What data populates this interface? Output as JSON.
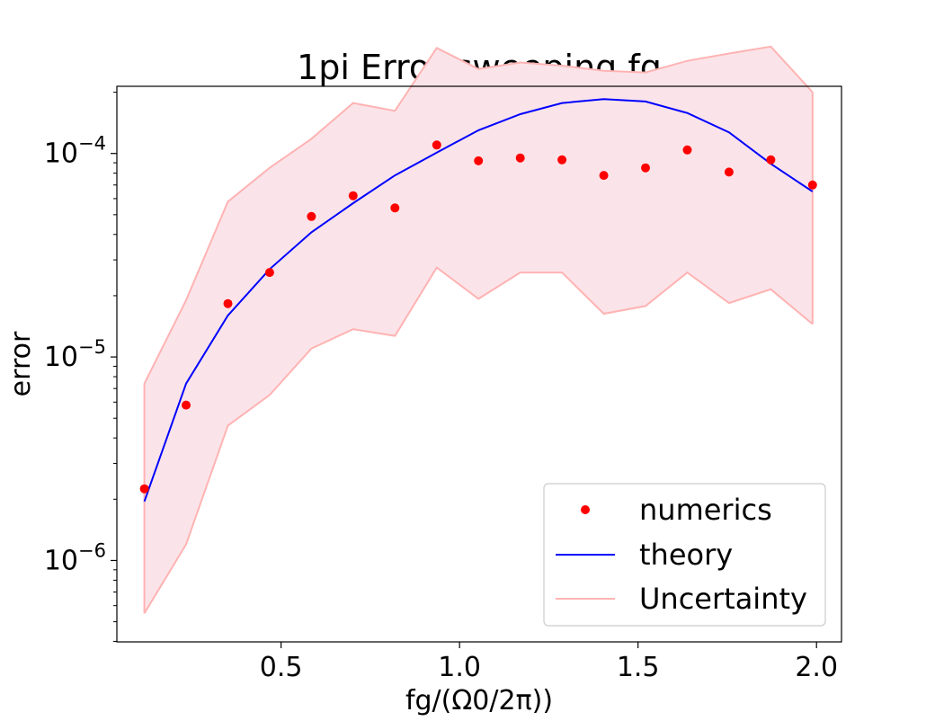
{
  "chart_data": {
    "type": "scatter",
    "title": "1pi Error,sweeping fg",
    "xlabel": "fg/(Ω0/2π))",
    "ylabel": "error",
    "xscale": "linear",
    "yscale": "log",
    "xlim": [
      0.04,
      2.07
    ],
    "ylim_exp": [
      -6.4,
      -3.67
    ],
    "x_ticks": [
      0.5,
      1.0,
      1.5,
      2.0
    ],
    "x_tick_labels": [
      "0.5",
      "1.0",
      "1.5",
      "2.0"
    ],
    "y_ticks_exp": [
      -6,
      -5,
      -4
    ],
    "y_tick_labels": [
      {
        "base": "10",
        "exp": "−6"
      },
      {
        "base": "10",
        "exp": "−5"
      },
      {
        "base": "10",
        "exp": "−4"
      }
    ],
    "grid": false,
    "legend_position": "lower right",
    "series": [
      {
        "name": "numerics",
        "kind": "points",
        "color": "#ff0000",
        "x": [
          0.117,
          0.234,
          0.351,
          0.468,
          0.585,
          0.702,
          0.819,
          0.936,
          1.053,
          1.17,
          1.287,
          1.404,
          1.521,
          1.638,
          1.755,
          1.872,
          1.989
        ],
        "y": [
          2.25e-06,
          5.8e-06,
          1.83e-05,
          2.6e-05,
          4.9e-05,
          6.2e-05,
          5.4e-05,
          0.00011,
          9.2e-05,
          9.5e-05,
          9.3e-05,
          7.8e-05,
          8.5e-05,
          0.000104,
          8.1e-05,
          9.3e-05,
          7e-05
        ]
      },
      {
        "name": "theory",
        "kind": "line",
        "color": "#0000ff",
        "x": [
          0.117,
          0.234,
          0.351,
          0.468,
          0.585,
          0.702,
          0.819,
          0.936,
          1.053,
          1.17,
          1.287,
          1.404,
          1.521,
          1.638,
          1.755,
          1.872,
          1.989
        ],
        "y": [
          1.95e-06,
          7.4e-06,
          1.6e-05,
          2.7e-05,
          4.1e-05,
          5.7e-05,
          7.8e-05,
          0.000101,
          0.00013,
          0.000156,
          0.000177,
          0.000185,
          0.00018,
          0.000158,
          0.000127,
          8.9e-05,
          6.5e-05
        ]
      },
      {
        "name": "Uncertainty",
        "kind": "band",
        "color": "#ffb3b3",
        "fill": "#fbe4e9",
        "x": [
          0.117,
          0.234,
          0.351,
          0.468,
          0.585,
          0.702,
          0.819,
          0.936,
          1.053,
          1.17,
          1.287,
          1.404,
          1.521,
          1.638,
          1.755,
          1.872,
          1.989
        ],
        "upper": [
          7.4e-06,
          1.9e-05,
          5.8e-05,
          8.5e-05,
          0.000118,
          0.000177,
          0.000162,
          0.00033,
          0.00026,
          0.00028,
          0.00027,
          0.000255,
          0.00025,
          0.000285,
          0.00031,
          0.000335,
          0.0002
        ],
        "lower": [
          5.5e-07,
          1.2e-06,
          4.6e-06,
          6.5e-06,
          1.1e-05,
          1.37e-05,
          1.27e-05,
          2.75e-05,
          1.93e-05,
          2.6e-05,
          2.6e-05,
          1.63e-05,
          1.78e-05,
          2.6e-05,
          1.84e-05,
          2.15e-05,
          1.45e-05
        ]
      }
    ]
  }
}
